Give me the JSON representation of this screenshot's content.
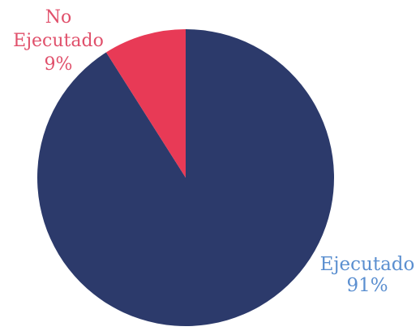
{
  "chart_data": {
    "type": "pie",
    "title": "",
    "slices": [
      {
        "label_lines": [
          "Ejecutado",
          "91%"
        ],
        "value": 91,
        "color": "#2c3a6b",
        "label_color": "#5b8fd0"
      },
      {
        "label_lines": [
          "No",
          "Ejecutado",
          "9%"
        ],
        "value": 9,
        "color": "#e83a56",
        "label_color": "#e0506b"
      }
    ],
    "start": "12 o'clock",
    "direction": "clockwise",
    "legend": "none"
  }
}
